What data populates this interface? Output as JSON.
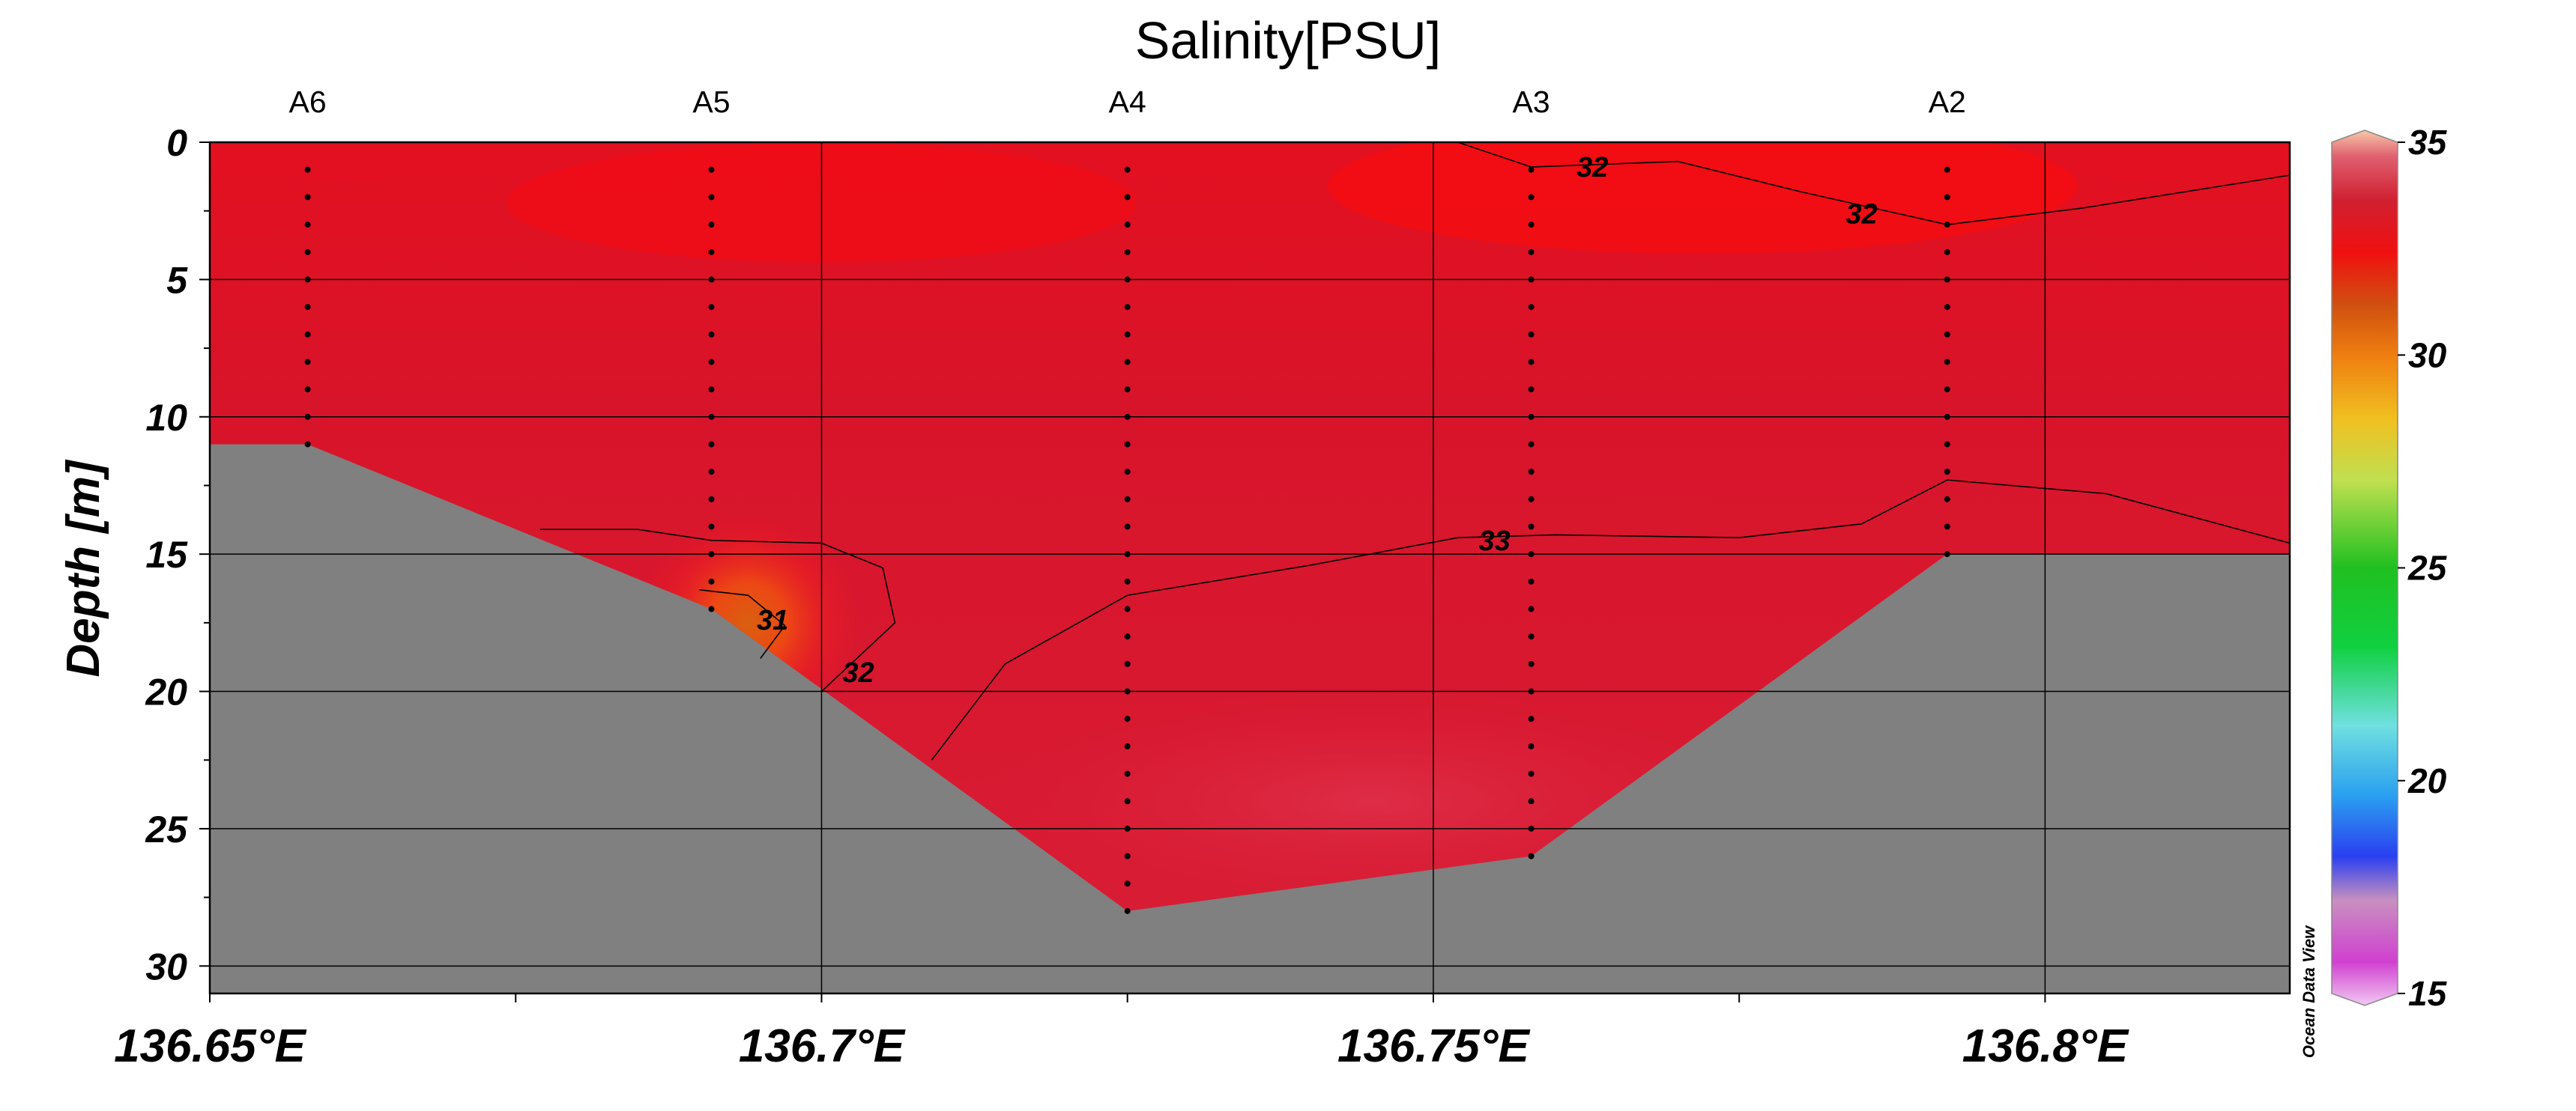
{
  "chart_data": {
    "type": "heatmap",
    "title": "Salinity[PSU]",
    "xlabel": "",
    "ylabel": "Depth [m]",
    "xlim": [
      136.65,
      136.82
    ],
    "ylim": [
      31,
      0
    ],
    "x_ticks": [
      136.65,
      136.7,
      136.75,
      136.8
    ],
    "x_tick_labels": [
      "136.65°E",
      "136.7°E",
      "136.75°E",
      "136.8°E"
    ],
    "y_ticks": [
      0,
      5,
      10,
      15,
      20,
      25,
      30
    ],
    "y_tick_labels": [
      "0",
      "5",
      "10",
      "15",
      "20",
      "25",
      "30"
    ],
    "grid": true,
    "stations": [
      {
        "name": "A6",
        "lon": 136.658,
        "max_depth": 11,
        "samples": [
          1,
          2,
          3,
          4,
          5,
          6,
          7,
          8,
          9,
          10,
          11
        ]
      },
      {
        "name": "A5",
        "lon": 136.691,
        "max_depth": 17,
        "samples": [
          1,
          2,
          3,
          4,
          5,
          6,
          7,
          8,
          9,
          10,
          11,
          12,
          13,
          14,
          15,
          16,
          17
        ]
      },
      {
        "name": "A4",
        "lon": 136.725,
        "max_depth": 28,
        "samples": [
          1,
          2,
          3,
          4,
          5,
          6,
          7,
          8,
          9,
          10,
          11,
          12,
          13,
          14,
          15,
          16,
          17,
          18,
          19,
          20,
          21,
          22,
          23,
          24,
          25,
          26,
          27,
          28
        ]
      },
      {
        "name": "A3",
        "lon": 136.758,
        "max_depth": 26,
        "samples": [
          1,
          2,
          3,
          4,
          5,
          6,
          7,
          8,
          9,
          10,
          11,
          12,
          13,
          14,
          15,
          16,
          17,
          18,
          19,
          20,
          21,
          22,
          23,
          24,
          25,
          26
        ]
      },
      {
        "name": "A2",
        "lon": 136.792,
        "max_depth": 15,
        "samples": [
          1,
          2,
          3,
          4,
          5,
          6,
          7,
          8,
          9,
          10,
          11,
          12,
          13,
          14,
          15
        ]
      }
    ],
    "seafloor": [
      [
        136.65,
        11
      ],
      [
        136.658,
        11
      ],
      [
        136.691,
        17
      ],
      [
        136.725,
        28
      ],
      [
        136.758,
        26
      ],
      [
        136.792,
        15
      ],
      [
        136.82,
        15
      ]
    ],
    "contours": [
      {
        "level": 32,
        "label": "32",
        "points": [
          [
            136.752,
            0
          ],
          [
            136.758,
            0.9
          ],
          [
            136.77,
            0.7
          ],
          [
            136.78,
            1.8
          ],
          [
            136.792,
            3
          ],
          [
            136.803,
            2.4
          ],
          [
            136.82,
            1.2
          ]
        ],
        "label_positions": [
          [
            136.763,
            0.9
          ],
          [
            136.785,
            2.6
          ]
        ]
      },
      {
        "level": 33,
        "label": "33",
        "points": [
          [
            136.709,
            22.5
          ],
          [
            136.715,
            19
          ],
          [
            136.725,
            16.5
          ],
          [
            136.74,
            15.4
          ],
          [
            136.752,
            14.4
          ],
          [
            136.76,
            14.3
          ],
          [
            136.775,
            14.4
          ],
          [
            136.785,
            13.9
          ],
          [
            136.792,
            12.3
          ],
          [
            136.805,
            12.8
          ],
          [
            136.82,
            14.6
          ]
        ],
        "label_positions": [
          [
            136.755,
            14.5
          ]
        ]
      },
      {
        "level": 32,
        "label": "32",
        "points": [
          [
            136.677,
            14.1
          ],
          [
            136.685,
            14.1
          ],
          [
            136.691,
            14.5
          ],
          [
            136.7,
            14.6
          ],
          [
            136.705,
            15.5
          ],
          [
            136.706,
            17.5
          ],
          [
            136.7,
            20
          ]
        ],
        "label_positions": [
          [
            136.703,
            19.3
          ]
        ]
      },
      {
        "level": 31,
        "label": "31",
        "points": [
          [
            136.69,
            16.3
          ],
          [
            136.694,
            16.5
          ],
          [
            136.697,
            17.6
          ],
          [
            136.695,
            18.8
          ]
        ],
        "label_positions": [
          [
            136.696,
            17.4
          ]
        ]
      }
    ],
    "colorbar": {
      "min": 15,
      "max": 35,
      "ticks": [
        15,
        20,
        25,
        30,
        35
      ]
    },
    "watermark": "Ocean Data View"
  }
}
